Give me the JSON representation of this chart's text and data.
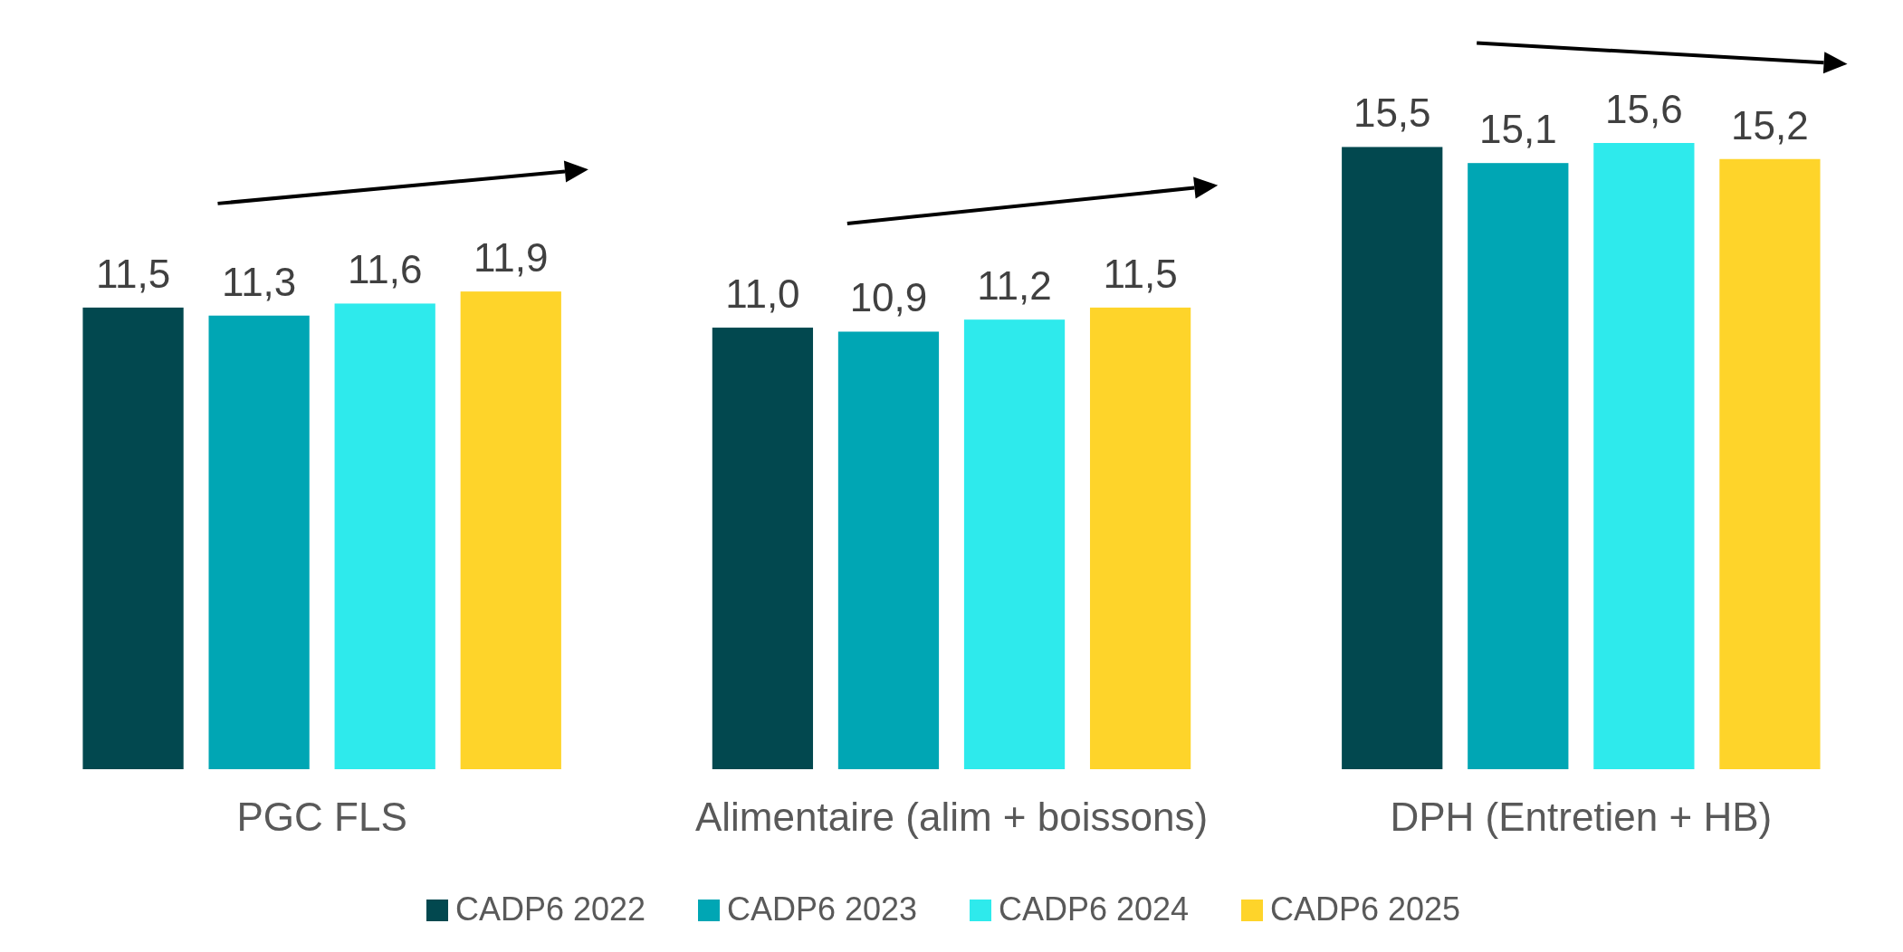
{
  "chart_data": {
    "type": "bar",
    "categories": [
      "PGC FLS",
      "Alimentaire (alim + boissons)",
      "DPH (Entretien + HB)"
    ],
    "series": [
      {
        "name": "CADP6 2022",
        "color": "#02484f",
        "values": [
          11.5,
          11.0,
          15.5
        ],
        "value_labels": [
          "11,5",
          "11,0",
          "15,5"
        ]
      },
      {
        "name": "CADP6 2023",
        "color": "#00a6b4",
        "values": [
          11.3,
          10.9,
          15.1
        ],
        "value_labels": [
          "11,3",
          "10,9",
          "15,1"
        ]
      },
      {
        "name": "CADP6 2024",
        "color": "#2eeaec",
        "values": [
          11.6,
          11.2,
          15.6
        ],
        "value_labels": [
          "11,6",
          "11,2",
          "15,6"
        ]
      },
      {
        "name": "CADP6 2025",
        "color": "#fed42a",
        "values": [
          11.9,
          11.5,
          15.2
        ],
        "value_labels": [
          "11,9",
          "11,5",
          "15,2"
        ]
      }
    ],
    "legend": "bottom",
    "grid": false
  }
}
